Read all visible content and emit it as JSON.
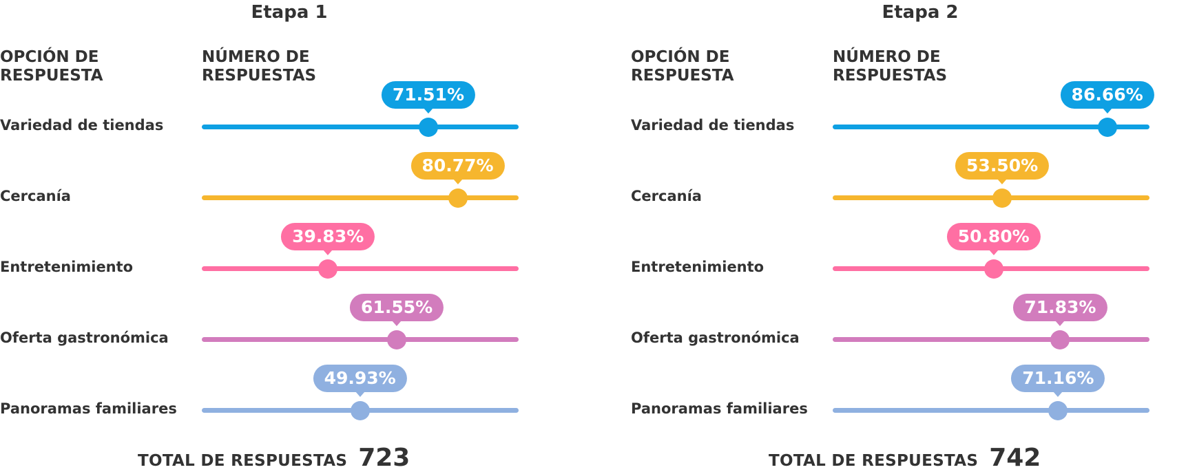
{
  "chart_data": [
    {
      "type": "bar",
      "title": "Etapa 1",
      "column_headers": {
        "option": [
          "OPCIÓN DE",
          "RESPUESTA"
        ],
        "count": [
          "NÚMERO DE",
          "RESPUESTAS"
        ]
      },
      "categories": [
        "Variedad de tiendas",
        "Cercanía",
        "Entretenimiento",
        "Oferta gastronómica",
        "Panoramas familiares"
      ],
      "values": [
        71.51,
        80.77,
        39.83,
        61.55,
        49.93
      ],
      "labels": [
        "71.51%",
        "80.77%",
        "39.83%",
        "61.55%",
        "49.93%"
      ],
      "colors": [
        "#0ea0e3",
        "#f6b62e",
        "#ff6fa3",
        "#d27cbd",
        "#8fb0e0"
      ],
      "ylim": [
        0,
        100
      ],
      "total_label": "TOTAL DE RESPUESTAS",
      "total_value": "723"
    },
    {
      "type": "bar",
      "title": "Etapa 2",
      "column_headers": {
        "option": [
          "OPCIÓN DE",
          "RESPUESTA"
        ],
        "count": [
          "NÚMERO DE",
          "RESPUESTAS"
        ]
      },
      "categories": [
        "Variedad de tiendas",
        "Cercanía",
        "Entretenimiento",
        "Oferta gastronómica",
        "Panoramas familiares"
      ],
      "values": [
        86.66,
        53.5,
        50.8,
        71.83,
        71.16
      ],
      "labels": [
        "86.66%",
        "53.50%",
        "50.80%",
        "71.83%",
        "71.16%"
      ],
      "colors": [
        "#0ea0e3",
        "#f6b62e",
        "#ff6fa3",
        "#d27cbd",
        "#8fb0e0"
      ],
      "ylim": [
        0,
        100
      ],
      "total_label": "TOTAL DE RESPUESTAS",
      "total_value": "742"
    }
  ]
}
